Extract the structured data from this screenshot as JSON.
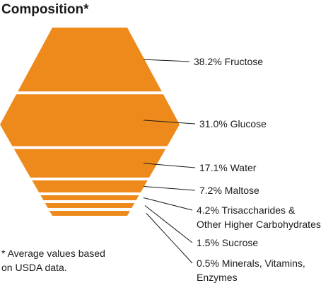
{
  "chart_data": {
    "type": "stacked-hexagon",
    "title": "Composition*",
    "fill_color": "#EE8A1C",
    "separator_color": "#FFFFFF",
    "leader_color": "#1a1a1a",
    "categories": [
      "Fructose",
      "Glucose",
      "Water",
      "Maltose",
      "Trisaccharides & Other Higher Carbohydrates",
      "Sucrose",
      "Minerals, Vitamins, Enzymes"
    ],
    "values": [
      38.2,
      31.0,
      17.1,
      7.2,
      4.2,
      1.5,
      0.5
    ],
    "labels": [
      [
        "38.2% Fructose"
      ],
      [
        "31.0% Glucose"
      ],
      [
        "17.1% Water"
      ],
      [
        "7.2% Maltose"
      ],
      [
        "4.2% Trisaccharides &",
        "Other Higher Carbohydrates"
      ],
      [
        "1.5% Sucrose"
      ],
      [
        "0.5% Minerals, Vitamins,",
        "Enzymes"
      ]
    ],
    "footnote": [
      "* Average values based",
      "on USDA data."
    ]
  }
}
